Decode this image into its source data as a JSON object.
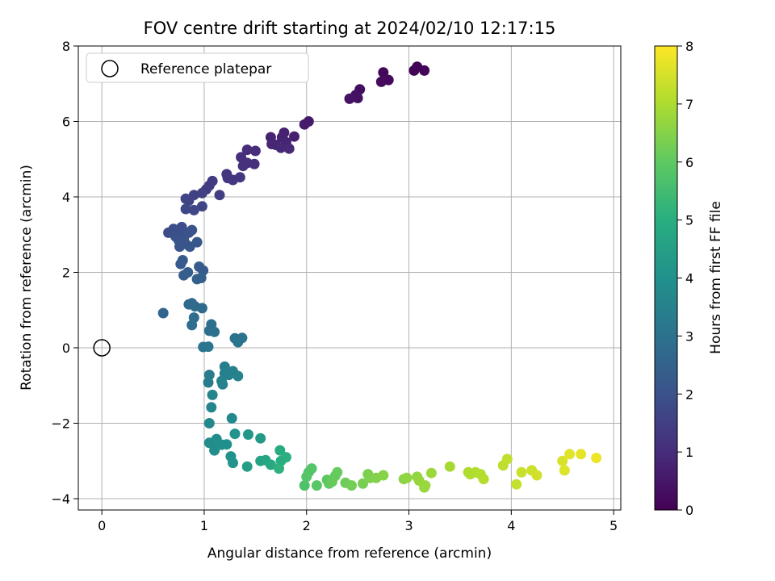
{
  "chart_data": {
    "type": "scatter",
    "title": "FOV centre drift starting at 2024/02/10 12:17:15",
    "xlabel": "Angular distance from reference (arcmin)",
    "ylabel": "Rotation from reference (arcmin)",
    "xlim": [
      -0.23,
      5.07
    ],
    "ylim": [
      -4.3,
      8.0
    ],
    "xticks": [
      0,
      1,
      2,
      3,
      4,
      5
    ],
    "yticks": [
      -4,
      -2,
      0,
      2,
      4,
      6,
      8
    ],
    "xtick_labels": [
      "0",
      "1",
      "2",
      "3",
      "4",
      "5"
    ],
    "ytick_labels": [
      "−4",
      "−2",
      "0",
      "2",
      "4",
      "6",
      "8"
    ],
    "grid": true,
    "legend": {
      "position": "top-left",
      "entries": [
        "Reference platepar"
      ]
    },
    "reference_point": {
      "x": 0,
      "y": 0
    },
    "colorbar": {
      "label": "Hours from first FF file",
      "range": [
        0,
        8
      ],
      "ticks": [
        0,
        1,
        2,
        3,
        4,
        5,
        6,
        7,
        8
      ],
      "tick_labels": [
        "0",
        "1",
        "2",
        "3",
        "4",
        "5",
        "6",
        "7",
        "8"
      ],
      "colormap": "viridis"
    },
    "points": [
      [
        3.05,
        7.35,
        0.05
      ],
      [
        3.08,
        7.45,
        0.1
      ],
      [
        3.15,
        7.35,
        0.12
      ],
      [
        2.75,
        7.3,
        0.15
      ],
      [
        2.8,
        7.1,
        0.2
      ],
      [
        2.73,
        7.05,
        0.22
      ],
      [
        2.52,
        6.85,
        0.3
      ],
      [
        2.48,
        6.7,
        0.35
      ],
      [
        2.5,
        6.62,
        0.38
      ],
      [
        2.42,
        6.6,
        0.4
      ],
      [
        2.02,
        6.0,
        0.55
      ],
      [
        1.98,
        5.92,
        0.6
      ],
      [
        1.88,
        5.6,
        0.7
      ],
      [
        1.78,
        5.7,
        0.72
      ],
      [
        1.76,
        5.58,
        0.75
      ],
      [
        1.65,
        5.58,
        0.78
      ],
      [
        1.8,
        5.45,
        0.8
      ],
      [
        1.7,
        5.38,
        0.82
      ],
      [
        1.66,
        5.4,
        0.85
      ],
      [
        1.75,
        5.3,
        0.88
      ],
      [
        1.83,
        5.28,
        0.9
      ],
      [
        1.5,
        5.22,
        1.0
      ],
      [
        1.42,
        5.25,
        1.02
      ],
      [
        1.36,
        5.05,
        1.05
      ],
      [
        1.42,
        4.9,
        1.08
      ],
      [
        1.49,
        4.87,
        1.1
      ],
      [
        1.38,
        4.82,
        1.12
      ],
      [
        1.22,
        4.6,
        1.2
      ],
      [
        1.23,
        4.5,
        1.22
      ],
      [
        1.28,
        4.45,
        1.25
      ],
      [
        1.35,
        4.52,
        1.28
      ],
      [
        1.08,
        4.42,
        1.35
      ],
      [
        1.05,
        4.3,
        1.38
      ],
      [
        1.02,
        4.2,
        1.4
      ],
      [
        1.15,
        4.05,
        1.45
      ],
      [
        0.98,
        4.1,
        1.5
      ],
      [
        0.9,
        4.05,
        1.55
      ],
      [
        0.82,
        3.95,
        1.6
      ],
      [
        0.85,
        3.9,
        1.62
      ],
      [
        0.98,
        3.75,
        1.65
      ],
      [
        0.9,
        3.65,
        1.7
      ],
      [
        0.82,
        3.68,
        1.72
      ],
      [
        0.65,
        3.05,
        1.85
      ],
      [
        0.7,
        3.15,
        1.88
      ],
      [
        0.75,
        3.05,
        1.9
      ],
      [
        0.78,
        3.2,
        1.92
      ],
      [
        0.72,
        2.95,
        1.95
      ],
      [
        0.8,
        2.9,
        1.98
      ],
      [
        0.85,
        3.05,
        2.0
      ],
      [
        0.88,
        3.12,
        2.02
      ],
      [
        0.75,
        2.85,
        2.05
      ],
      [
        0.82,
        2.75,
        2.08
      ],
      [
        0.76,
        2.68,
        2.1
      ],
      [
        0.86,
        2.68,
        2.12
      ],
      [
        0.93,
        2.8,
        2.15
      ],
      [
        0.79,
        2.32,
        2.25
      ],
      [
        0.77,
        2.22,
        2.28
      ],
      [
        0.95,
        2.15,
        2.3
      ],
      [
        0.99,
        2.05,
        2.32
      ],
      [
        0.84,
        2.0,
        2.35
      ],
      [
        0.8,
        1.92,
        2.38
      ],
      [
        0.97,
        1.85,
        2.4
      ],
      [
        0.93,
        1.82,
        2.42
      ],
      [
        0.6,
        0.92,
        2.6
      ],
      [
        0.85,
        1.15,
        2.7
      ],
      [
        0.88,
        1.18,
        2.72
      ],
      [
        0.91,
        1.1,
        2.75
      ],
      [
        0.98,
        1.05,
        2.78
      ],
      [
        0.9,
        0.8,
        2.82
      ],
      [
        0.88,
        0.6,
        2.85
      ],
      [
        1.07,
        0.62,
        2.9
      ],
      [
        1.05,
        0.45,
        2.92
      ],
      [
        1.1,
        0.42,
        2.95
      ],
      [
        1.3,
        0.25,
        3.0
      ],
      [
        1.37,
        0.26,
        3.02
      ],
      [
        1.33,
        0.15,
        3.05
      ],
      [
        0.99,
        0.02,
        3.1
      ],
      [
        1.04,
        0.03,
        3.12
      ],
      [
        1.05,
        -0.72,
        3.3
      ],
      [
        1.04,
        -0.92,
        3.35
      ],
      [
        1.2,
        -0.5,
        3.4
      ],
      [
        1.2,
        -0.68,
        3.42
      ],
      [
        1.24,
        -0.72,
        3.45
      ],
      [
        1.28,
        -0.62,
        3.48
      ],
      [
        1.33,
        -0.75,
        3.5
      ],
      [
        1.17,
        -0.88,
        3.52
      ],
      [
        1.18,
        -0.97,
        3.55
      ],
      [
        1.08,
        -1.25,
        3.6
      ],
      [
        1.07,
        -1.58,
        3.65
      ],
      [
        1.05,
        -2.0,
        3.7
      ],
      [
        1.27,
        -1.87,
        3.75
      ],
      [
        1.05,
        -2.52,
        3.85
      ],
      [
        1.12,
        -2.42,
        3.88
      ],
      [
        1.1,
        -2.72,
        3.9
      ],
      [
        1.13,
        -2.52,
        3.92
      ],
      [
        1.17,
        -2.57,
        3.95
      ],
      [
        1.22,
        -2.56,
        3.98
      ],
      [
        1.26,
        -2.88,
        4.05
      ],
      [
        1.3,
        -2.28,
        4.1
      ],
      [
        1.28,
        -3.05,
        4.12
      ],
      [
        1.43,
        -2.3,
        4.2
      ],
      [
        1.55,
        -2.4,
        4.3
      ],
      [
        1.42,
        -3.15,
        4.4
      ],
      [
        1.55,
        -3.0,
        4.6
      ],
      [
        1.6,
        -2.98,
        4.7
      ],
      [
        1.65,
        -3.1,
        4.8
      ],
      [
        1.74,
        -2.72,
        4.9
      ],
      [
        1.75,
        -3.0,
        5.0
      ],
      [
        1.8,
        -2.9,
        5.05
      ],
      [
        1.73,
        -3.2,
        5.1
      ],
      [
        1.98,
        -3.65,
        5.7
      ],
      [
        2.02,
        -3.3,
        5.75
      ],
      [
        2.05,
        -3.2,
        5.8
      ],
      [
        2.0,
        -3.42,
        5.85
      ],
      [
        2.1,
        -3.65,
        5.9
      ],
      [
        2.2,
        -3.5,
        5.95
      ],
      [
        2.22,
        -3.6,
        6.0
      ],
      [
        2.28,
        -3.4,
        6.05
      ],
      [
        2.3,
        -3.3,
        6.1
      ],
      [
        2.25,
        -3.55,
        6.12
      ],
      [
        2.38,
        -3.58,
        6.2
      ],
      [
        2.44,
        -3.65,
        6.25
      ],
      [
        2.55,
        -3.6,
        6.3
      ],
      [
        2.6,
        -3.35,
        6.35
      ],
      [
        2.62,
        -3.45,
        6.4
      ],
      [
        2.68,
        -3.45,
        6.45
      ],
      [
        2.75,
        -3.38,
        6.5
      ],
      [
        2.95,
        -3.48,
        6.6
      ],
      [
        2.98,
        -3.45,
        6.62
      ],
      [
        3.08,
        -3.42,
        6.65
      ],
      [
        3.1,
        -3.52,
        6.7
      ],
      [
        3.15,
        -3.7,
        6.72
      ],
      [
        3.16,
        -3.65,
        6.75
      ],
      [
        3.22,
        -3.32,
        6.8
      ],
      [
        3.4,
        -3.15,
        6.9
      ],
      [
        3.58,
        -3.3,
        7.0
      ],
      [
        3.6,
        -3.35,
        7.02
      ],
      [
        3.65,
        -3.3,
        7.05
      ],
      [
        3.7,
        -3.35,
        7.08
      ],
      [
        3.73,
        -3.48,
        7.1
      ],
      [
        3.92,
        -3.12,
        7.2
      ],
      [
        3.96,
        -2.95,
        7.25
      ],
      [
        4.05,
        -3.62,
        7.3
      ],
      [
        4.1,
        -3.3,
        7.35
      ],
      [
        4.2,
        -3.25,
        7.4
      ],
      [
        4.25,
        -3.38,
        7.45
      ],
      [
        4.5,
        -3.0,
        7.55
      ],
      [
        4.52,
        -3.25,
        7.6
      ],
      [
        4.57,
        -2.82,
        7.65
      ],
      [
        4.68,
        -2.82,
        7.7
      ],
      [
        4.83,
        -2.92,
        7.8
      ]
    ]
  }
}
